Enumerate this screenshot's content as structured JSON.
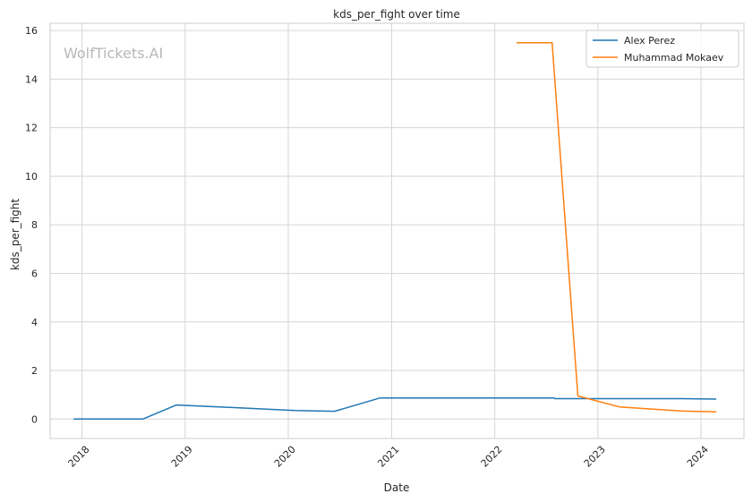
{
  "watermark": "WolfTickets.AI",
  "chart_data": {
    "type": "line",
    "title": "kds_per_fight over time",
    "xlabel": "Date",
    "ylabel": "kds_per_fight",
    "x_ticks": [
      "2018",
      "2019",
      "2020",
      "2021",
      "2022",
      "2023",
      "2024"
    ],
    "y_ticks": [
      "0",
      "2",
      "4",
      "6",
      "8",
      "10",
      "12",
      "14",
      "16"
    ],
    "xlim": [
      "2017-09-10",
      "2024-06-01"
    ],
    "ylim": [
      -0.8,
      16.3
    ],
    "grid": true,
    "legend_position": "top-right",
    "series": [
      {
        "name": "Alex Perez",
        "color": "#1f77b4",
        "points": [
          [
            "2017-12-02",
            0.0
          ],
          [
            "2018-08-04",
            0.0
          ],
          [
            "2018-12-01",
            0.58
          ],
          [
            "2019-05-01",
            0.5
          ],
          [
            "2020-01-25",
            0.35
          ],
          [
            "2020-06-13",
            0.32
          ],
          [
            "2020-11-21",
            0.87
          ],
          [
            "2022-07-30",
            0.87
          ],
          [
            "2022-08-01",
            0.84
          ],
          [
            "2023-10-21",
            0.84
          ],
          [
            "2024-02-24",
            0.82
          ]
        ]
      },
      {
        "name": "Muhammad Mokaev",
        "color": "#ff7f0e",
        "points": [
          [
            "2022-03-19",
            15.5
          ],
          [
            "2022-07-23",
            15.5
          ],
          [
            "2022-10-22",
            0.95
          ],
          [
            "2023-03-18",
            0.5
          ],
          [
            "2023-10-21",
            0.33
          ],
          [
            "2024-02-24",
            0.3
          ]
        ]
      }
    ]
  }
}
